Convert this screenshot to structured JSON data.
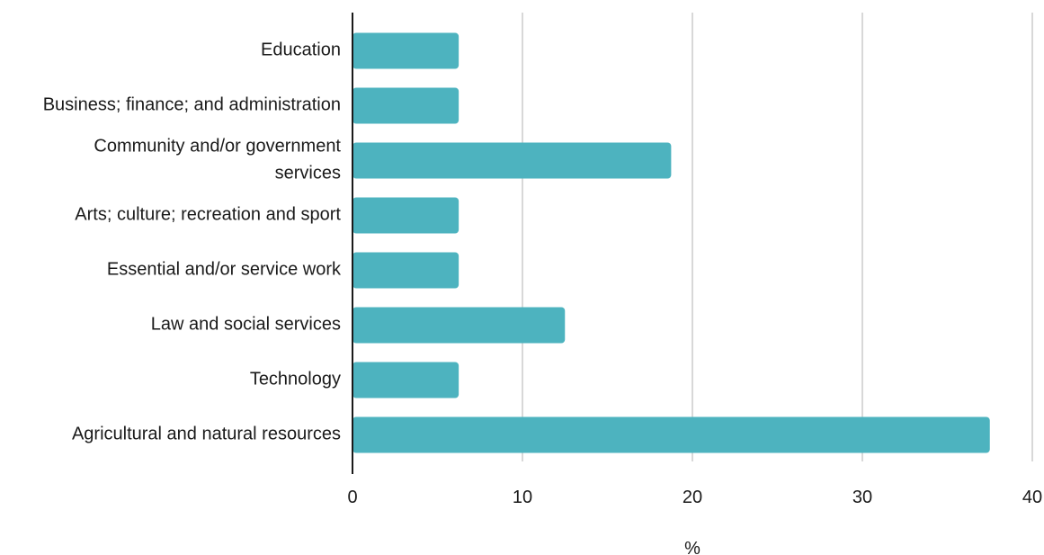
{
  "chart_data": {
    "type": "bar",
    "orientation": "horizontal",
    "categories": [
      [
        "Education"
      ],
      [
        "Business; finance; and administration"
      ],
      [
        "Community and/or government",
        "services"
      ],
      [
        "Arts; culture; recreation and sport"
      ],
      [
        "Essential and/or service work"
      ],
      [
        "Law and social services"
      ],
      [
        "Technology"
      ],
      [
        "Agricultural and natural resources"
      ]
    ],
    "values": [
      6.25,
      6.25,
      18.75,
      6.25,
      6.25,
      12.5,
      6.25,
      37.5
    ],
    "xlabel": "%",
    "ylabel": "",
    "title": "",
    "xlim": [
      0,
      40
    ],
    "xticks": [
      0,
      10,
      20,
      30,
      40
    ],
    "grid": "vertical",
    "legend": "none",
    "colors": {
      "bar": "#4db3bf",
      "grid": "#cccccc",
      "axis": "#1a1a1a"
    }
  }
}
